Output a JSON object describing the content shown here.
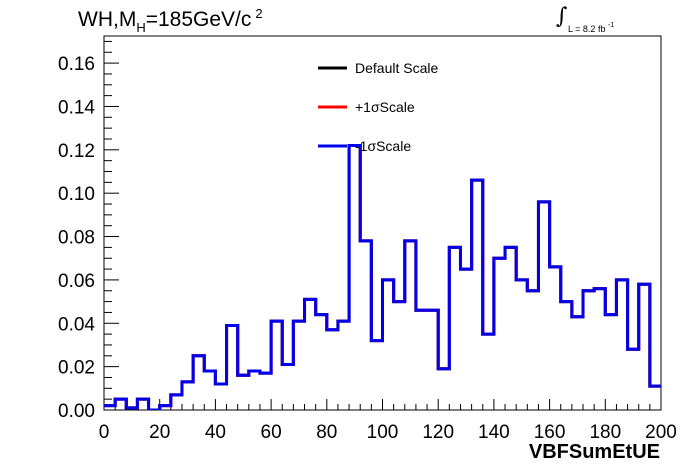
{
  "header": {
    "title_main": "WH,M",
    "title_sub": "H",
    "title_rest": "=185GeV/c",
    "title_sup": "2",
    "lumi_text": "L = 8.2 fb",
    "lumi_sup": "-1",
    "lumi_symbol": "∫"
  },
  "chart_data": {
    "type": "line",
    "xlabel": "VBFSumEtUE",
    "ylabel": "",
    "xlim": [
      0,
      200
    ],
    "ylim": [
      0,
      0.1725
    ],
    "x_ticks": [
      "0",
      "20",
      "40",
      "60",
      "80",
      "100",
      "120",
      "140",
      "160",
      "180",
      "200"
    ],
    "y_ticks": [
      "0.00",
      "0.02",
      "0.04",
      "0.06",
      "0.08",
      "0.10",
      "0.12",
      "0.14",
      "0.16"
    ],
    "grid": false,
    "legend_position": "top-center",
    "bin_edges": [
      0,
      4,
      8,
      12,
      16,
      20,
      24,
      28,
      32,
      36,
      40,
      44,
      48,
      52,
      56,
      60,
      64,
      68,
      72,
      76,
      80,
      84,
      88,
      92,
      96,
      100,
      104,
      108,
      112,
      116,
      120,
      124,
      128,
      132,
      136,
      140,
      144,
      148,
      152,
      156,
      160,
      164,
      168,
      172,
      176,
      180,
      184,
      188,
      192,
      196,
      200
    ],
    "series": [
      {
        "name": "Default Scale",
        "color": "#000000",
        "values": [
          0.002,
          0.005,
          0.001,
          0.005,
          0.0,
          0.002,
          0.007,
          0.013,
          0.025,
          0.018,
          0.012,
          0.039,
          0.016,
          0.018,
          0.017,
          0.041,
          0.021,
          0.041,
          0.051,
          0.044,
          0.037,
          0.041,
          0.122,
          0.078,
          0.032,
          0.06,
          0.05,
          0.078,
          0.046,
          0.046,
          0.019,
          0.075,
          0.065,
          0.106,
          0.035,
          0.07,
          0.075,
          0.06,
          0.055,
          0.096,
          0.066,
          0.05,
          0.043,
          0.055,
          0.056,
          0.044,
          0.06,
          0.028,
          0.058,
          0.011
        ]
      },
      {
        "name": "+1σScale",
        "color": "#ff0000",
        "values": [
          0.002,
          0.005,
          0.001,
          0.005,
          0.0,
          0.002,
          0.007,
          0.013,
          0.025,
          0.018,
          0.012,
          0.039,
          0.016,
          0.018,
          0.017,
          0.041,
          0.021,
          0.041,
          0.051,
          0.044,
          0.037,
          0.041,
          0.122,
          0.078,
          0.032,
          0.06,
          0.05,
          0.078,
          0.046,
          0.046,
          0.019,
          0.075,
          0.065,
          0.106,
          0.035,
          0.07,
          0.075,
          0.06,
          0.055,
          0.096,
          0.066,
          0.05,
          0.043,
          0.055,
          0.056,
          0.044,
          0.06,
          0.028,
          0.058,
          0.011
        ]
      },
      {
        "name": "-1σScale",
        "color": "#0000ee",
        "values": [
          0.002,
          0.005,
          0.001,
          0.005,
          0.0,
          0.002,
          0.007,
          0.013,
          0.025,
          0.018,
          0.012,
          0.039,
          0.016,
          0.018,
          0.017,
          0.041,
          0.021,
          0.041,
          0.051,
          0.044,
          0.037,
          0.041,
          0.122,
          0.078,
          0.032,
          0.06,
          0.05,
          0.078,
          0.046,
          0.046,
          0.019,
          0.075,
          0.065,
          0.106,
          0.035,
          0.07,
          0.075,
          0.06,
          0.055,
          0.096,
          0.066,
          0.05,
          0.043,
          0.055,
          0.056,
          0.044,
          0.06,
          0.028,
          0.058,
          0.011
        ]
      }
    ]
  }
}
